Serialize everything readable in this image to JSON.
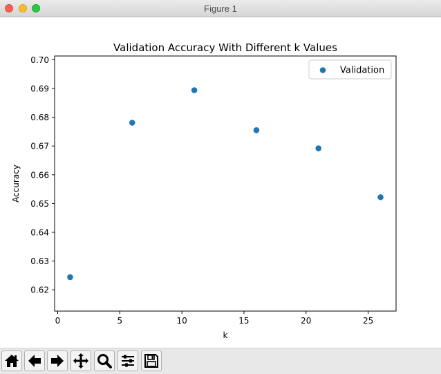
{
  "window": {
    "title": "Figure 1"
  },
  "toolbar": {
    "buttons": [
      {
        "name": "home-icon"
      },
      {
        "name": "back-arrow-icon"
      },
      {
        "name": "forward-arrow-icon"
      },
      {
        "name": "pan-move-icon"
      },
      {
        "name": "zoom-magnifier-icon"
      },
      {
        "name": "configure-subplots-icon"
      },
      {
        "name": "save-floppy-icon"
      }
    ]
  },
  "chart_data": {
    "type": "scatter",
    "title": "Validation Accuracy With Different k Values",
    "xlabel": "k",
    "ylabel": "Accuracy",
    "xlim": [
      -0.25,
      27.25
    ],
    "ylim": [
      0.6126,
      0.7013
    ],
    "xticks": [
      0,
      5,
      10,
      15,
      20,
      25
    ],
    "yticks": [
      0.62,
      0.63,
      0.64,
      0.65,
      0.66,
      0.67,
      0.68,
      0.69,
      0.7
    ],
    "ytick_labels": [
      "0.62",
      "0.63",
      "0.64",
      "0.65",
      "0.66",
      "0.67",
      "0.68",
      "0.69",
      "0.70"
    ],
    "grid": false,
    "legend": "top-right",
    "series": [
      {
        "name": "Validation",
        "color": "#1f77b4",
        "x": [
          1,
          6,
          11,
          16,
          21,
          26
        ],
        "y": [
          0.6244,
          0.6781,
          0.6894,
          0.6755,
          0.6692,
          0.6522
        ]
      }
    ]
  }
}
